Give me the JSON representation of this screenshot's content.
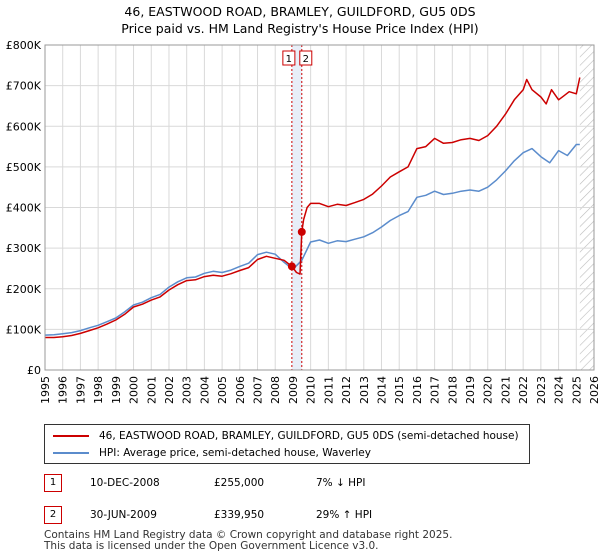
{
  "title_line1": "46, EASTWOOD ROAD, BRAMLEY, GUILDFORD, GU5 0DS",
  "title_line2": "Price paid vs. HM Land Registry's House Price Index (HPI)",
  "chart_data": {
    "type": "line",
    "x_range": [
      1995,
      2026
    ],
    "ylim": [
      0,
      800000
    ],
    "y_ticks": [
      0,
      100000,
      200000,
      300000,
      400000,
      500000,
      600000,
      700000,
      800000
    ],
    "y_tick_labels": [
      "£0",
      "£100K",
      "£200K",
      "£300K",
      "£400K",
      "£500K",
      "£600K",
      "£700K",
      "£800K"
    ],
    "x_ticks": [
      1995,
      1996,
      1997,
      1998,
      1999,
      2000,
      2001,
      2002,
      2003,
      2004,
      2005,
      2006,
      2007,
      2008,
      2009,
      2010,
      2011,
      2012,
      2013,
      2014,
      2015,
      2016,
      2017,
      2018,
      2019,
      2020,
      2021,
      2022,
      2023,
      2024,
      2025,
      2026
    ],
    "grid": true,
    "series": [
      {
        "name": "46, EASTWOOD ROAD, BRAMLEY, GUILDFORD, GU5 0DS (semi-detached house)",
        "color": "#cc0000",
        "x": [
          1995,
          1995.5,
          1996,
          1996.5,
          1997,
          1997.5,
          1998,
          1998.5,
          1999,
          1999.5,
          2000,
          2000.5,
          2001,
          2001.5,
          2002,
          2002.5,
          2003,
          2003.5,
          2004,
          2004.5,
          2005,
          2005.5,
          2006,
          2006.5,
          2007,
          2007.5,
          2008,
          2008.5,
          2008.94,
          2009.2,
          2009.4,
          2009.5,
          2009.6,
          2009.8,
          2010,
          2010.5,
          2011,
          2011.5,
          2012,
          2012.5,
          2013,
          2013.5,
          2014,
          2014.5,
          2015,
          2015.5,
          2016,
          2016.5,
          2017,
          2017.5,
          2018,
          2018.5,
          2019,
          2019.5,
          2020,
          2020.5,
          2021,
          2021.5,
          2022,
          2022.2,
          2022.5,
          2023,
          2023.3,
          2023.6,
          2024,
          2024.3,
          2024.6,
          2025,
          2025.2
        ],
        "y": [
          80000,
          80000,
          82000,
          85000,
          90000,
          97000,
          104000,
          113000,
          123000,
          137000,
          155000,
          162000,
          172000,
          180000,
          197000,
          210000,
          220000,
          222000,
          230000,
          233000,
          231000,
          237000,
          245000,
          252000,
          272000,
          280000,
          275000,
          270000,
          255000,
          240000,
          236000,
          339950,
          370000,
          400000,
          410000,
          410000,
          402000,
          408000,
          405000,
          412000,
          420000,
          433000,
          453000,
          475000,
          488000,
          500000,
          545000,
          550000,
          570000,
          558000,
          560000,
          567000,
          570000,
          565000,
          577000,
          600000,
          630000,
          665000,
          690000,
          715000,
          690000,
          672000,
          655000,
          690000,
          665000,
          675000,
          685000,
          680000,
          720000
        ]
      },
      {
        "name": "HPI: Average price, semi-detached house, Waverley",
        "color": "#5b8ccc",
        "x": [
          1995,
          1995.5,
          1996,
          1996.5,
          1997,
          1997.5,
          1998,
          1998.5,
          1999,
          1999.5,
          2000,
          2000.5,
          2001,
          2001.5,
          2002,
          2002.5,
          2003,
          2003.5,
          2004,
          2004.5,
          2005,
          2005.5,
          2006,
          2006.5,
          2007,
          2007.5,
          2008,
          2008.5,
          2009,
          2009.5,
          2010,
          2010.5,
          2011,
          2011.5,
          2012,
          2012.5,
          2013,
          2013.5,
          2014,
          2014.5,
          2015,
          2015.5,
          2016,
          2016.5,
          2017,
          2017.5,
          2018,
          2018.5,
          2019,
          2019.5,
          2020,
          2020.5,
          2021,
          2021.5,
          2022,
          2022.5,
          2023,
          2023.5,
          2024,
          2024.5,
          2025,
          2025.2
        ],
        "y": [
          86000,
          87000,
          89000,
          92000,
          97000,
          104000,
          110000,
          119000,
          128000,
          143000,
          160000,
          167000,
          178000,
          186000,
          204000,
          217000,
          227000,
          229000,
          238000,
          243000,
          240000,
          246000,
          255000,
          263000,
          284000,
          290000,
          285000,
          265000,
          248000,
          270000,
          315000,
          320000,
          312000,
          318000,
          316000,
          322000,
          328000,
          338000,
          352000,
          368000,
          380000,
          390000,
          425000,
          430000,
          440000,
          432000,
          435000,
          440000,
          443000,
          440000,
          450000,
          468000,
          490000,
          515000,
          535000,
          545000,
          525000,
          510000,
          540000,
          528000,
          555000,
          555000
        ]
      }
    ],
    "sales": [
      {
        "label": "1",
        "x": 2008.94,
        "y": 255000
      },
      {
        "label": "2",
        "x": 2009.5,
        "y": 339950
      }
    ],
    "vlines_dotted": [
      2008.94,
      2009.5
    ],
    "hatched_from": 2025.2
  },
  "legend": {
    "series1": "46, EASTWOOD ROAD, BRAMLEY, GUILDFORD, GU5 0DS (semi-detached house)",
    "series2": "HPI: Average price, semi-detached house, Waverley",
    "color1": "#cc0000",
    "color2": "#5b8ccc"
  },
  "transactions": [
    {
      "num": "1",
      "date": "10-DEC-2008",
      "price": "£255,000",
      "hpi": "7% ↓ HPI"
    },
    {
      "num": "2",
      "date": "30-JUN-2009",
      "price": "£339,950",
      "hpi": "29% ↑ HPI"
    }
  ],
  "footer_line1": "Contains HM Land Registry data © Crown copyright and database right 2025.",
  "footer_line2": "This data is licensed under the Open Government Licence v3.0."
}
